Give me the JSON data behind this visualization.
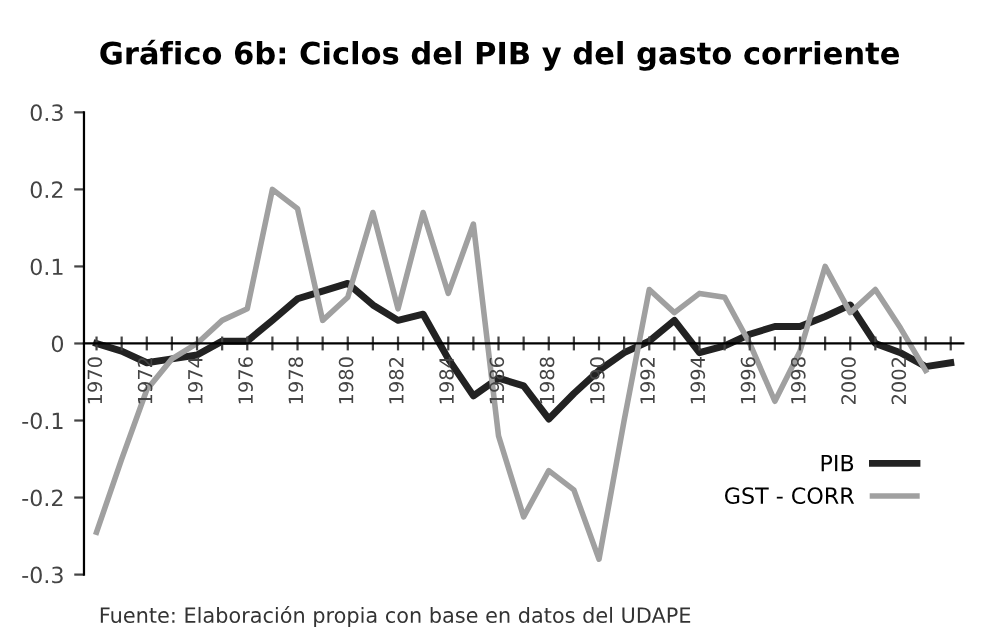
{
  "chart_data": {
    "type": "line",
    "title": "Gráfico 6b: Ciclos del PIB y del gasto corriente",
    "categories": [
      "1970",
      null,
      "1972",
      null,
      "1974",
      null,
      "1976",
      null,
      "1978",
      null,
      "1980",
      null,
      "1982",
      null,
      "1984",
      null,
      "1986",
      null,
      "1988",
      null,
      "1990",
      null,
      "1992",
      null,
      "1994",
      null,
      "1996",
      null,
      "1998",
      null,
      "2000",
      null,
      "2002",
      null,
      null
    ],
    "series": [
      {
        "name": "PIB",
        "color": "#222222",
        "line_style": "solid",
        "values": [
          0,
          -0.01,
          -0.025,
          -0.02,
          -0.015,
          0.003,
          0.003,
          0.03,
          0.058,
          0.068,
          0.078,
          0.05,
          0.03,
          0.038,
          -0.02,
          -0.068,
          -0.045,
          -0.055,
          -0.098,
          -0.065,
          -0.035,
          -0.012,
          0.003,
          0.03,
          -0.012,
          -0.003,
          0.012,
          0.022,
          0.022,
          0.035,
          0.05,
          0.0,
          -0.012,
          -0.03,
          -0.025
        ]
      },
      {
        "name": "GST - CORR",
        "color": "#a0a0a0",
        "line_style": "solid",
        "values": [
          -0.245,
          -0.15,
          -0.06,
          -0.02,
          0.0,
          0.03,
          0.045,
          0.2,
          0.175,
          0.03,
          0.06,
          0.17,
          0.045,
          0.17,
          0.065,
          0.155,
          -0.12,
          -0.225,
          -0.165,
          -0.19,
          -0.28,
          -0.1,
          0.07,
          0.04,
          0.065,
          0.06,
          0.0,
          -0.075,
          -0.01,
          0.1,
          0.04,
          0.07,
          0.02,
          -0.035,
          null
        ]
      }
    ],
    "ylim": [
      -0.3,
      0.3
    ],
    "yticks": [
      -0.3,
      -0.2,
      -0.1,
      0,
      0.1,
      0.2,
      0.3
    ],
    "grid": false,
    "legend": "bottom right",
    "marker": "none",
    "annotations": [
      "Fuente: Elaboración propia con base en datos del UDAPE"
    ]
  }
}
